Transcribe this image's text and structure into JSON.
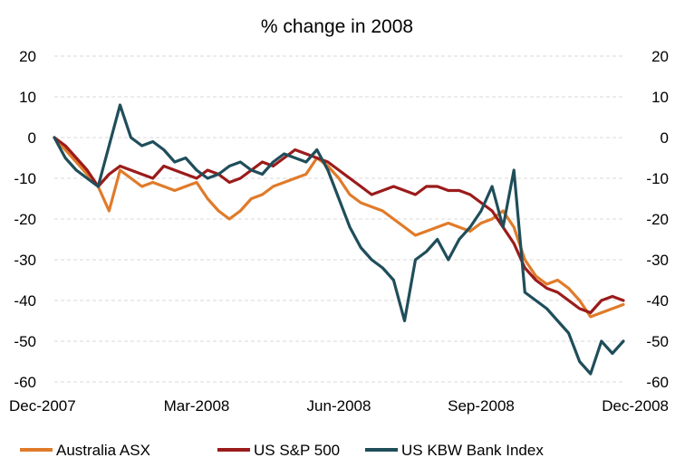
{
  "chart_data": {
    "type": "line",
    "title": "% change in 2008",
    "xlabel": "",
    "ylabel": "",
    "ylim": [
      -60,
      20
    ],
    "yticks": [
      "20",
      "10",
      "0",
      "-10",
      "-20",
      "-30",
      "-40",
      "-50",
      "-60"
    ],
    "xtick_labels": [
      "Dec-2007",
      "Mar-2008",
      "Jun-2008",
      "Sep-2008",
      "Dec-2008"
    ],
    "x_range": [
      0,
      52
    ],
    "grid": true,
    "legend_position": "bottom",
    "series": [
      {
        "name": "Australia ASX",
        "color": "#e07b2a",
        "values": [
          0,
          -3,
          -6,
          -9,
          -12,
          -18,
          -8,
          -10,
          -12,
          -11,
          -12,
          -13,
          -12,
          -11,
          -15,
          -18,
          -20,
          -18,
          -15,
          -14,
          -12,
          -11,
          -10,
          -9,
          -5,
          -7,
          -10,
          -14,
          -16,
          -17,
          -18,
          -20,
          -22,
          -24,
          -23,
          -22,
          -21,
          -22,
          -23,
          -21,
          -20,
          -18,
          -22,
          -30,
          -34,
          -36,
          -35,
          -37,
          -40,
          -44,
          -43,
          -42,
          -41
        ]
      },
      {
        "name": "US S&P 500",
        "color": "#9b1b1b",
        "values": [
          0,
          -2,
          -5,
          -8,
          -12,
          -9,
          -7,
          -8,
          -9,
          -10,
          -7,
          -8,
          -9,
          -10,
          -8,
          -9,
          -11,
          -10,
          -8,
          -6,
          -7,
          -5,
          -3,
          -4,
          -5,
          -6,
          -8,
          -10,
          -12,
          -14,
          -13,
          -12,
          -13,
          -14,
          -12,
          -12,
          -13,
          -13,
          -14,
          -16,
          -18,
          -22,
          -26,
          -32,
          -35,
          -37,
          -38,
          -40,
          -42,
          -43,
          -40,
          -39,
          -40
        ]
      },
      {
        "name": "US KBW Bank Index",
        "color": "#1f4e5a",
        "values": [
          0,
          -5,
          -8,
          -10,
          -12,
          -2,
          8,
          0,
          -2,
          -1,
          -3,
          -6,
          -5,
          -8,
          -10,
          -9,
          -7,
          -6,
          -8,
          -9,
          -6,
          -4,
          -5,
          -6,
          -3,
          -8,
          -15,
          -22,
          -27,
          -30,
          -32,
          -35,
          -45,
          -30,
          -28,
          -25,
          -30,
          -25,
          -22,
          -18,
          -12,
          -22,
          -8,
          -38,
          -40,
          -42,
          -45,
          -48,
          -55,
          -58,
          -50,
          -53,
          -50
        ]
      }
    ]
  }
}
